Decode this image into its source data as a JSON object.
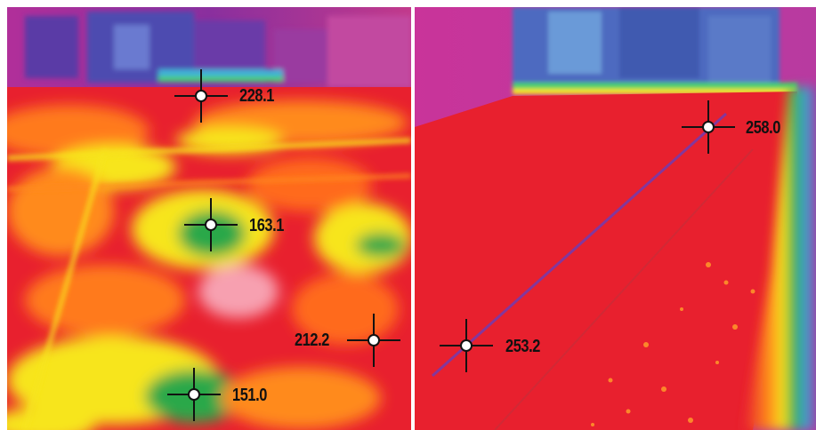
{
  "image": {
    "description_hidden": true,
    "colors": {
      "hot": "#e8202e",
      "warm": "#ff6a1a",
      "yellow": "#f7e51a",
      "green": "#2aa84a",
      "cool": "#3fa9d8",
      "magenta": "#c72a8a",
      "purple": "#7a3aa8",
      "divider": "#ffffff"
    }
  },
  "readings": {
    "left": [
      {
        "id": "reading-1",
        "value": "228.1"
      },
      {
        "id": "reading-2",
        "value": "163.1"
      },
      {
        "id": "reading-3",
        "value": "212.2"
      },
      {
        "id": "reading-4",
        "value": "151.0"
      }
    ],
    "right": [
      {
        "id": "reading-5",
        "value": "258.0"
      },
      {
        "id": "reading-6",
        "value": "253.2"
      }
    ]
  }
}
